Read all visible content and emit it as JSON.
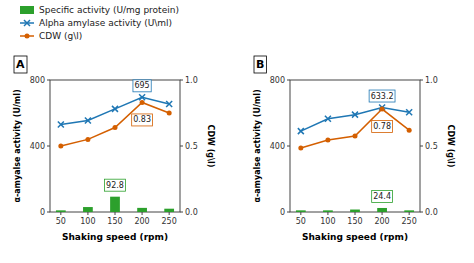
{
  "chart_data": [
    {
      "type": "bar",
      "title": "A",
      "legend": "upper left",
      "x_label": "Shaking speed (rpm)",
      "y_label": "α-amyalse activity (U/ml)",
      "y2_label": "CDW (g\\l)",
      "x": [
        50,
        100,
        150,
        200,
        250
      ],
      "xlim": [
        30,
        270
      ],
      "xticks": [
        50,
        100,
        150,
        200,
        250
      ],
      "ylim": [
        0,
        800
      ],
      "yticks": [
        0,
        400,
        800
      ],
      "y2lim": [
        0,
        1
      ],
      "y2ticks": [
        {
          "value": 0,
          "label": "0.0"
        },
        0.5,
        {
          "value": 1,
          "label": "1.0"
        }
      ],
      "series": [
        {
          "name": "Specific activity (U/mg protein)",
          "type": "bar",
          "color": "#2ca02c",
          "values": [
            10,
            30,
            92.8,
            25,
            20
          ]
        },
        {
          "name": "Alpha amylase activity (U\\ml)",
          "type": "line",
          "marker": "x",
          "color": "#1f77b4",
          "values": [
            530,
            555,
            625,
            695,
            655
          ]
        },
        {
          "name": "CDW (g\\l)",
          "type": "line",
          "marker": "o",
          "axis": "y2",
          "color": "#d45f00",
          "values": [
            0.5,
            0.55,
            0.64,
            0.83,
            0.75
          ]
        }
      ],
      "annotations": [
        {
          "text": "695",
          "x": 200,
          "y": 695,
          "color": "#1f77b4"
        },
        {
          "text": "0.83",
          "x": 200,
          "y": 0.83,
          "axis": "y2",
          "color": "#d45f00"
        },
        {
          "text": "92.8",
          "x": 150,
          "y": 92.8,
          "color": "#2ca02c"
        }
      ]
    },
    {
      "type": "bar",
      "title": "B",
      "x_label": "Shaking speed (rpm)",
      "y_label": "α-amyalse activity (U/ml)",
      "y2_label": "CDW (g\\l)",
      "x": [
        50,
        100,
        150,
        200,
        250
      ],
      "xlim": [
        30,
        270
      ],
      "xticks": [
        50,
        100,
        150,
        200,
        250
      ],
      "ylim": [
        0,
        800
      ],
      "yticks": [
        0,
        400,
        800
      ],
      "y2lim": [
        0,
        1
      ],
      "y2ticks": [
        {
          "value": 0,
          "label": "0.0"
        },
        0.5,
        {
          "value": 1,
          "label": "1.0"
        }
      ],
      "series": [
        {
          "type": "bar",
          "color": "#2ca02c",
          "values": [
            10,
            10,
            15,
            24.4,
            10
          ]
        },
        {
          "type": "line",
          "marker": "x",
          "color": "#1f77b4",
          "values": [
            490,
            565,
            590,
            633.2,
            605
          ]
        },
        {
          "type": "line",
          "marker": "o",
          "axis": "y2",
          "color": "#d45f00",
          "values": [
            0.485,
            0.545,
            0.575,
            0.78,
            0.62
          ]
        }
      ],
      "annotations": [
        {
          "text": "633.2",
          "x": 200,
          "y": 633.2,
          "color": "#1f77b4"
        },
        {
          "text": "0.78",
          "x": 200,
          "y": 0.78,
          "axis": "y2",
          "color": "#d45f00"
        },
        {
          "text": "24.4",
          "x": 200,
          "y": 24.4,
          "color": "#2ca02c"
        }
      ]
    }
  ]
}
